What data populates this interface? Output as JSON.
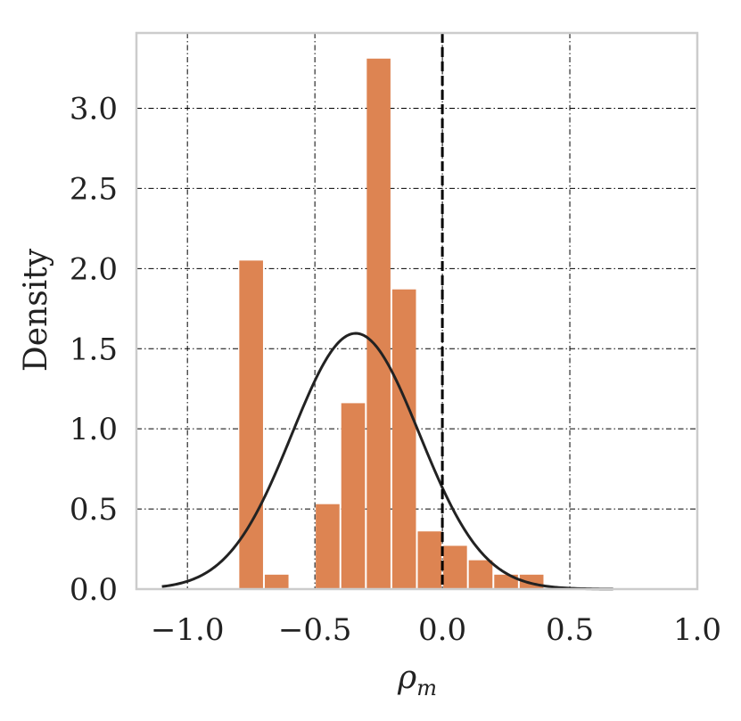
{
  "chart_data": {
    "type": "bar",
    "title": "",
    "xlabel": "ρm",
    "xlabel_main": "ρ",
    "xlabel_sub": "m",
    "ylabel": "Density",
    "xlim": [
      -1.2,
      1.0
    ],
    "ylim": [
      0,
      3.47
    ],
    "xticks": [
      -1.0,
      -0.5,
      0.0,
      0.5,
      1.0
    ],
    "xtick_labels": [
      "−1.0",
      "−0.5",
      "0.0",
      "0.5",
      "1.0"
    ],
    "yticks": [
      0.0,
      0.5,
      1.0,
      1.5,
      2.0,
      2.5,
      3.0
    ],
    "ytick_labels": [
      "0.0",
      "0.5",
      "1.0",
      "1.5",
      "2.0",
      "2.5",
      "3.0"
    ],
    "grid": true,
    "bin_width": 0.1,
    "bins": [
      {
        "x0": -0.8,
        "x1": -0.7,
        "value": 2.05
      },
      {
        "x0": -0.7,
        "x1": -0.6,
        "value": 0.09
      },
      {
        "x0": -0.5,
        "x1": -0.4,
        "value": 0.53
      },
      {
        "x0": -0.4,
        "x1": -0.3,
        "value": 1.16
      },
      {
        "x0": -0.3,
        "x1": -0.2,
        "value": 3.31
      },
      {
        "x0": -0.2,
        "x1": -0.1,
        "value": 1.87
      },
      {
        "x0": -0.1,
        "x1": 0.0,
        "value": 0.36
      },
      {
        "x0": 0.0,
        "x1": 0.1,
        "value": 0.27
      },
      {
        "x0": 0.1,
        "x1": 0.2,
        "value": 0.18
      },
      {
        "x0": 0.2,
        "x1": 0.3,
        "value": 0.09
      },
      {
        "x0": 0.3,
        "x1": 0.4,
        "value": 0.09
      }
    ],
    "normal_curve": {
      "mean": -0.34,
      "std": 0.25,
      "x_range": [
        -1.1,
        0.67
      ]
    },
    "reference_line_x": 0.0,
    "colors": {
      "bars": "#dd8452",
      "curve": "#222222",
      "reference_line": "#000000",
      "grid": "#000000",
      "frame": "#cccccc"
    }
  }
}
